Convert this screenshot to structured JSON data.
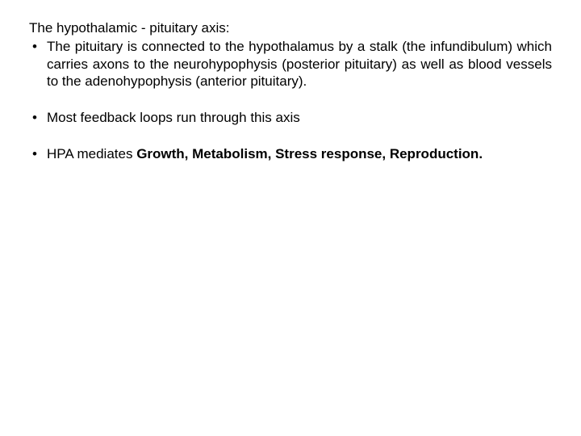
{
  "title": "The hypothalamic - pituitary axis:",
  "bullets": [
    "The pituitary is connected to the hypothalamus by a stalk (the infundibulum) which carries axons to the neurohypophysis (posterior pituitary) as well as blood vessels to the adenohypophysis (anterior pituitary).",
    "Most feedback loops run through this axis"
  ],
  "bullet3": {
    "pre": "HPA mediates ",
    "bold": "Growth, Metabolism, Stress response, Reproduction."
  },
  "colors": {
    "background": "#ffffff",
    "text": "#000000"
  },
  "typography": {
    "font_family": "Arial",
    "font_size_pt": 13,
    "line_height": 1.25
  }
}
